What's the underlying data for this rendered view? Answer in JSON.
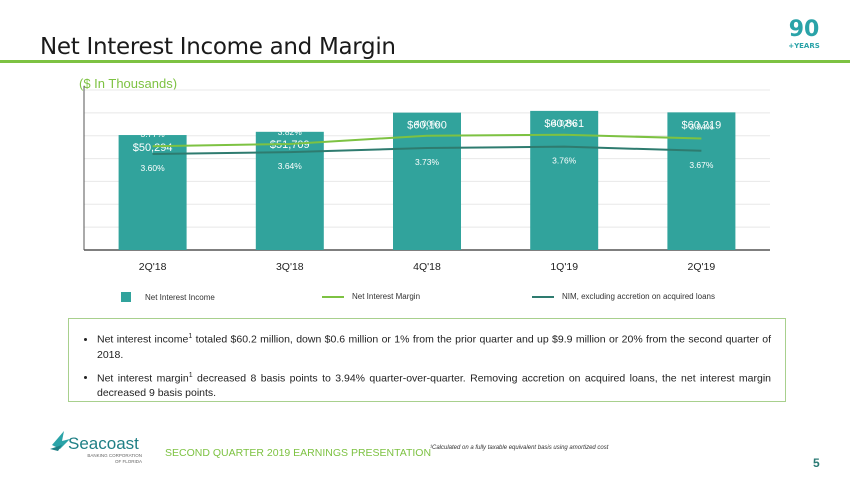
{
  "page": {
    "title": "Net Interest Income and Margin",
    "subtitle": "($ In Thousands)",
    "anniversary_badge": {
      "number": "90",
      "label": "+YEARS"
    },
    "footer_title": "SECOND QUARTER 2019 EARNINGS PRESENTATION",
    "footnote": "¹Calculated on a fully taxable equivalent basis using amortized cost",
    "page_number": "5",
    "company_logo": {
      "name": "Seacoast",
      "tagline_1": "BANKING CORPORATION",
      "tagline_2": "OF FLORIDA"
    },
    "colors": {
      "accent_green": "#7dc242",
      "teal_bar": "#31a39c",
      "nim_line": "#7dc242",
      "nim_ex_line": "#2e7b6f"
    }
  },
  "legend": [
    {
      "label": "Net Interest Income",
      "type": "box"
    },
    {
      "label": "Net Interest Margin",
      "type": "line"
    },
    {
      "label": "NIM, excluding accretion on acquired loans",
      "type": "line"
    }
  ],
  "bullets": [
    {
      "pre": "Net interest income",
      "sup": "1",
      "post": " totaled $60.2 million, down $0.6 million or 1% from the prior quarter and up $9.9 million or 20% from the second quarter of 2018."
    },
    {
      "pre": "Net interest margin",
      "sup": "1",
      "post": " decreased 8 basis points to 3.94% quarter-over-quarter. Removing accretion on acquired loans, the net interest margin decreased 9 basis points."
    }
  ],
  "chart_data": {
    "type": "bar",
    "title": "Net Interest Income and Margin",
    "subtitle": "($ In Thousands)",
    "categories": [
      "2Q'18",
      "3Q'18",
      "4Q'18",
      "1Q'19",
      "2Q'19"
    ],
    "series": [
      {
        "name": "Net Interest Income",
        "type": "bar",
        "values": [
          50294,
          51709,
          60100,
          60861,
          60219
        ],
        "labels": [
          "$50,294",
          "$51,709",
          "$60,100",
          "$60,861",
          "$60,219"
        ]
      },
      {
        "name": "Net Interest Margin",
        "type": "line",
        "values": [
          3.77,
          3.82,
          4.0,
          4.02,
          3.94
        ],
        "labels": [
          "3.77%",
          "3.82%",
          "4.00%",
          "4.02%",
          "3.94%"
        ]
      },
      {
        "name": "NIM, excluding accretion on acquired loans",
        "type": "line",
        "values": [
          3.6,
          3.64,
          3.73,
          3.76,
          3.67
        ],
        "labels": [
          "3.60%",
          "3.64%",
          "3.73%",
          "3.76%",
          "3.67%"
        ]
      }
    ],
    "xlabel": "",
    "ylabel": "",
    "ylim": [
      0,
      70000
    ],
    "y2lim": [
      1.5,
      5.0
    ],
    "grid": true,
    "legend_position": "bottom"
  }
}
